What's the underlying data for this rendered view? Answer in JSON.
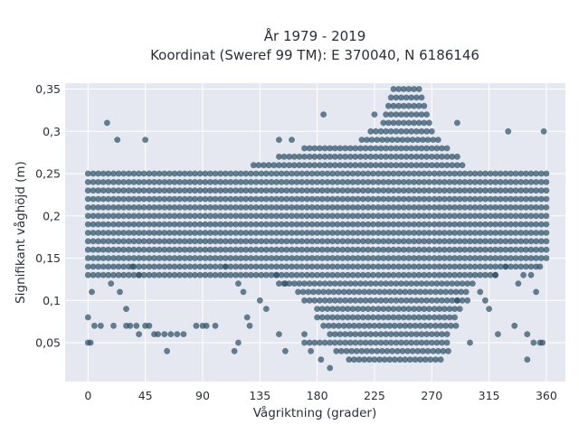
{
  "chart_data": {
    "type": "scatter",
    "title_lines": [
      "År 1979 - 2019",
      "Koordinat (Sweref 99 TM): E 370040, N 6186146"
    ],
    "xlabel": "Vågriktning (grader)",
    "ylabel": "Signifikant våghöjd (m)",
    "xlim": [
      -18,
      375
    ],
    "ylim": [
      0.004,
      0.357
    ],
    "xticks": [
      0,
      45,
      90,
      135,
      180,
      225,
      270,
      315,
      360
    ],
    "xtick_labels": [
      "0",
      "45",
      "90",
      "135",
      "180",
      "225",
      "270",
      "315",
      "360"
    ],
    "yticks": [
      0.05,
      0.1,
      0.15,
      0.2,
      0.25,
      0.3,
      0.35
    ],
    "ytick_labels": [
      "0,05",
      "0,1",
      "0,15",
      "0,2",
      "0,25",
      "0,3",
      "0,35"
    ],
    "grid": true,
    "colors": {
      "background": "#e5e8f0",
      "marker": "#2e5268",
      "grid": "#ffffff"
    },
    "height_levels": [
      0.03,
      0.04,
      0.05,
      0.06,
      0.07,
      0.08,
      0.09,
      0.1,
      0.11,
      0.12,
      0.13,
      0.14,
      0.15,
      0.16,
      0.17,
      0.18,
      0.19,
      0.2,
      0.21,
      0.22,
      0.23,
      0.24,
      0.25,
      0.26,
      0.27,
      0.28,
      0.29,
      0.3,
      0.31,
      0.32,
      0.33,
      0.34,
      0.35
    ],
    "bands": [
      {
        "y": 0.35,
        "x": [
          240,
          263
        ]
      },
      {
        "y": 0.34,
        "x": [
          238,
          265
        ]
      },
      {
        "y": 0.33,
        "x": [
          236,
          267
        ]
      },
      {
        "y": 0.32,
        "x": [
          234,
          268
        ]
      },
      {
        "y": 0.31,
        "x": [
          232,
          270
        ]
      },
      {
        "y": 0.3,
        "x": [
          222,
          272
        ]
      },
      {
        "y": 0.29,
        "x": [
          215,
          275
        ]
      },
      {
        "y": 0.28,
        "x": [
          170,
          285
        ]
      },
      {
        "y": 0.27,
        "x": [
          150,
          290
        ]
      },
      {
        "y": 0.26,
        "x": [
          130,
          295
        ]
      },
      {
        "y": 0.25,
        "x": [
          0,
          360
        ]
      },
      {
        "y": 0.24,
        "x": [
          0,
          360
        ]
      },
      {
        "y": 0.23,
        "x": [
          0,
          360
        ]
      },
      {
        "y": 0.22,
        "x": [
          0,
          360
        ]
      },
      {
        "y": 0.21,
        "x": [
          0,
          360
        ]
      },
      {
        "y": 0.2,
        "x": [
          0,
          360
        ]
      },
      {
        "y": 0.19,
        "x": [
          0,
          360
        ]
      },
      {
        "y": 0.18,
        "x": [
          0,
          360
        ]
      },
      {
        "y": 0.17,
        "x": [
          0,
          360
        ]
      },
      {
        "y": 0.16,
        "x": [
          0,
          360
        ]
      },
      {
        "y": 0.15,
        "x": [
          0,
          360
        ]
      },
      {
        "y": 0.14,
        "x": [
          0,
          355
        ]
      },
      {
        "y": 0.13,
        "x": [
          0,
          320
        ]
      },
      {
        "y": 0.12,
        "x": [
          150,
          305
        ]
      },
      {
        "y": 0.11,
        "x": [
          165,
          300
        ]
      },
      {
        "y": 0.1,
        "x": [
          170,
          300
        ]
      },
      {
        "y": 0.09,
        "x": [
          180,
          295
        ]
      },
      {
        "y": 0.08,
        "x": [
          180,
          290
        ]
      },
      {
        "y": 0.07,
        "x": [
          185,
          290
        ]
      },
      {
        "y": 0.06,
        "x": [
          190,
          285
        ]
      },
      {
        "y": 0.05,
        "x": [
          170,
          285
        ]
      },
      {
        "y": 0.04,
        "x": [
          195,
          285
        ]
      },
      {
        "y": 0.03,
        "x": [
          205,
          280
        ]
      }
    ],
    "outliers": [
      [
        15,
        0.31
      ],
      [
        23,
        0.29
      ],
      [
        45,
        0.29
      ],
      [
        150,
        0.29
      ],
      [
        160,
        0.29
      ],
      [
        225,
        0.32
      ],
      [
        185,
        0.32
      ],
      [
        290,
        0.31
      ],
      [
        330,
        0.3
      ],
      [
        358,
        0.3
      ],
      [
        0,
        0.05
      ],
      [
        2,
        0.05
      ],
      [
        0,
        0.08
      ],
      [
        3,
        0.11
      ],
      [
        5,
        0.07
      ],
      [
        10,
        0.07
      ],
      [
        20,
        0.07
      ],
      [
        30,
        0.07
      ],
      [
        33,
        0.07
      ],
      [
        38,
        0.07
      ],
      [
        45,
        0.07
      ],
      [
        48,
        0.07
      ],
      [
        52,
        0.06
      ],
      [
        55,
        0.06
      ],
      [
        60,
        0.06
      ],
      [
        65,
        0.06
      ],
      [
        70,
        0.06
      ],
      [
        75,
        0.06
      ],
      [
        62,
        0.04
      ],
      [
        90,
        0.07
      ],
      [
        93,
        0.07
      ],
      [
        100,
        0.07
      ],
      [
        115,
        0.04
      ],
      [
        118,
        0.05
      ],
      [
        125,
        0.08
      ],
      [
        127,
        0.07
      ],
      [
        135,
        0.1
      ],
      [
        140,
        0.09
      ],
      [
        150,
        0.06
      ],
      [
        155,
        0.04
      ],
      [
        175,
        0.04
      ],
      [
        183,
        0.03
      ],
      [
        190,
        0.02
      ],
      [
        300,
        0.05
      ],
      [
        322,
        0.06
      ],
      [
        335,
        0.07
      ],
      [
        345,
        0.06
      ],
      [
        350,
        0.05
      ],
      [
        355,
        0.05
      ],
      [
        357,
        0.05
      ],
      [
        345,
        0.03
      ],
      [
        338,
        0.12
      ],
      [
        352,
        0.11
      ],
      [
        18,
        0.12
      ],
      [
        25,
        0.11
      ],
      [
        35,
        0.14
      ],
      [
        40,
        0.13
      ],
      [
        30,
        0.09
      ],
      [
        108,
        0.14
      ],
      [
        118,
        0.12
      ],
      [
        122,
        0.11
      ],
      [
        148,
        0.13
      ],
      [
        155,
        0.12
      ],
      [
        308,
        0.11
      ],
      [
        312,
        0.1
      ],
      [
        315,
        0.09
      ],
      [
        320,
        0.13
      ],
      [
        328,
        0.14
      ],
      [
        342,
        0.13
      ],
      [
        348,
        0.13
      ],
      [
        355,
        0.14
      ],
      [
        290,
        0.1
      ],
      [
        40,
        0.06
      ],
      [
        85,
        0.07
      ],
      [
        170,
        0.06
      ]
    ]
  }
}
